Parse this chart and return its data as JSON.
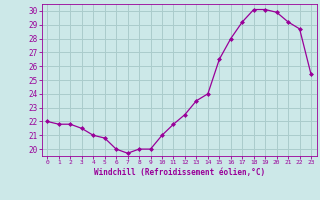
{
  "x": [
    0,
    1,
    2,
    3,
    4,
    5,
    6,
    7,
    8,
    9,
    10,
    11,
    12,
    13,
    14,
    15,
    16,
    17,
    18,
    19,
    20,
    21,
    22,
    23
  ],
  "y": [
    22.0,
    21.8,
    21.8,
    21.5,
    21.0,
    20.8,
    20.0,
    19.7,
    20.0,
    20.0,
    21.0,
    21.8,
    22.5,
    23.5,
    24.0,
    26.5,
    28.0,
    29.2,
    30.1,
    30.1,
    29.9,
    29.2,
    28.7,
    25.4
  ],
  "line_color": "#990099",
  "marker": "D",
  "marker_size": 2,
  "bg_color": "#cce8e8",
  "grid_color": "#aacccc",
  "xlabel": "Windchill (Refroidissement éolien,°C)",
  "xlabel_color": "#990099",
  "tick_color": "#990099",
  "ylim": [
    19.5,
    30.5
  ],
  "yticks": [
    20,
    21,
    22,
    23,
    24,
    25,
    26,
    27,
    28,
    29,
    30
  ],
  "xticks": [
    0,
    1,
    2,
    3,
    4,
    5,
    6,
    7,
    8,
    9,
    10,
    11,
    12,
    13,
    14,
    15,
    16,
    17,
    18,
    19,
    20,
    21,
    22,
    23
  ],
  "xtick_labels": [
    "0",
    "1",
    "2",
    "3",
    "4",
    "5",
    "6",
    "7",
    "8",
    "9",
    "10",
    "11",
    "12",
    "13",
    "14",
    "15",
    "16",
    "17",
    "18",
    "19",
    "20",
    "21",
    "22",
    "23"
  ],
  "xlim": [
    -0.5,
    23.5
  ]
}
